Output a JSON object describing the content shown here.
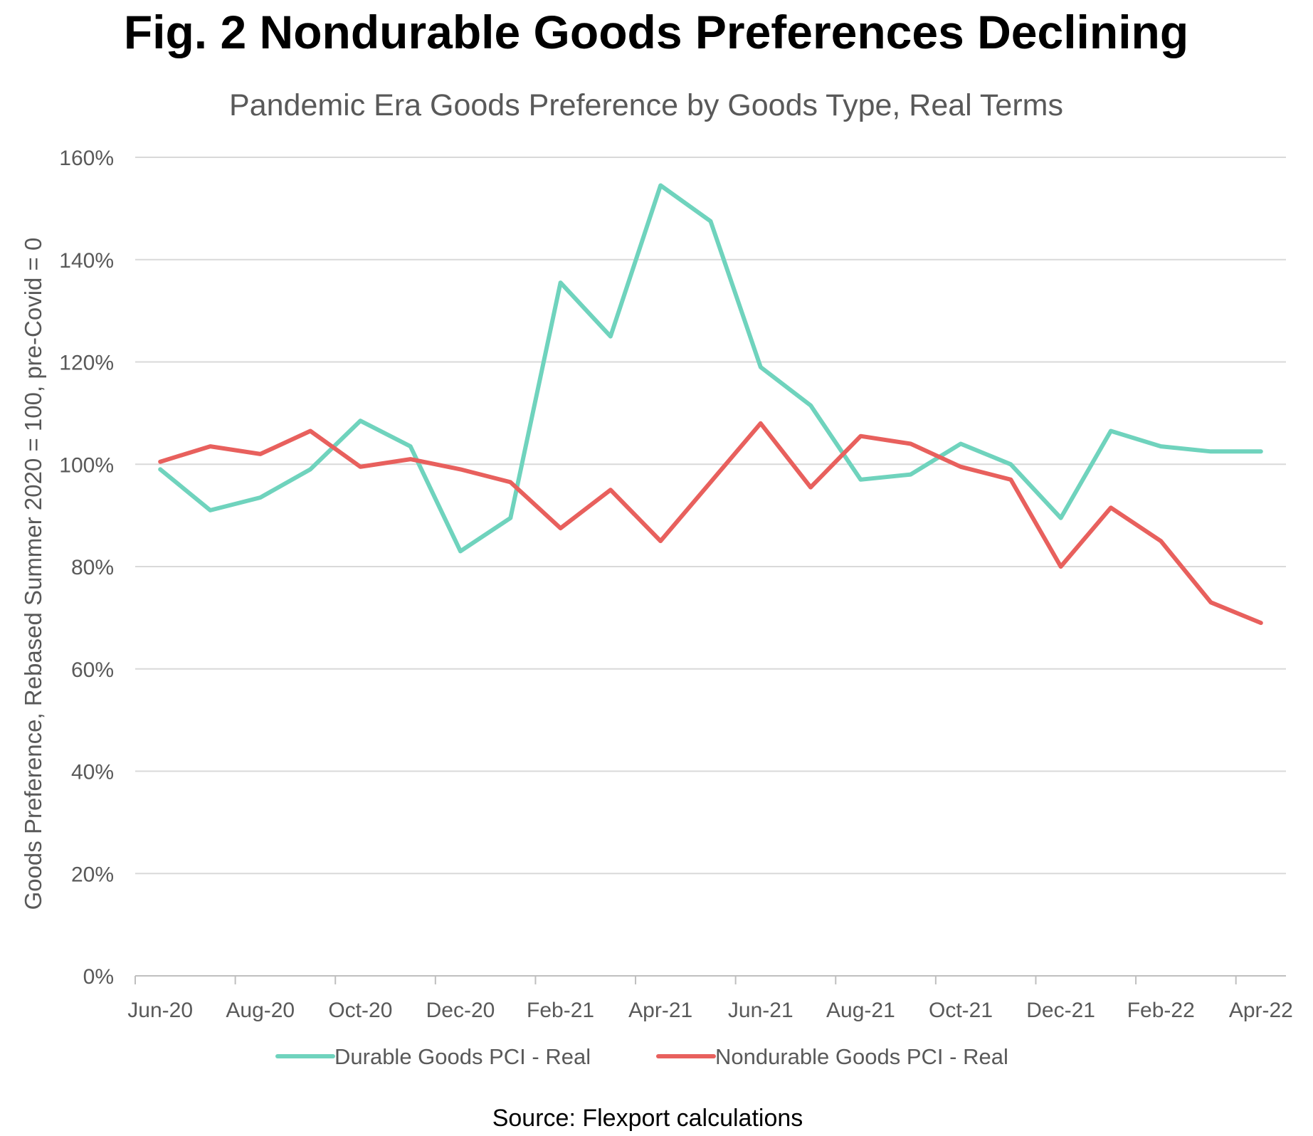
{
  "chart_data": {
    "type": "line",
    "title": "Fig. 2 Nondurable Goods Preferences Declining",
    "subtitle": "Pandemic Era Goods Preference by Goods Type, Real Terms",
    "ylabel": "Goods Preference, Rebased Summer 2020 = 100, pre-Covid = 0",
    "xlabel": "",
    "ylim": [
      0,
      160
    ],
    "yticks": [
      0,
      20,
      40,
      60,
      80,
      100,
      120,
      140,
      160
    ],
    "ytick_labels": [
      "0%",
      "20%",
      "40%",
      "60%",
      "80%",
      "100%",
      "120%",
      "140%",
      "160%"
    ],
    "grid": true,
    "legend_position": "bottom",
    "categories": [
      "Jun-20",
      "Jul-20",
      "Aug-20",
      "Sep-20",
      "Oct-20",
      "Nov-20",
      "Dec-20",
      "Jan-21",
      "Feb-21",
      "Mar-21",
      "Apr-21",
      "May-21",
      "Jun-21",
      "Jul-21",
      "Aug-21",
      "Sep-21",
      "Oct-21",
      "Nov-21",
      "Dec-21",
      "Jan-22",
      "Feb-22",
      "Mar-22",
      "Apr-22"
    ],
    "xtick_labels": [
      "Jun-20",
      "Aug-20",
      "Oct-20",
      "Dec-20",
      "Feb-21",
      "Apr-21",
      "Jun-21",
      "Aug-21",
      "Oct-21",
      "Dec-21",
      "Feb-22",
      "Apr-22"
    ],
    "series": [
      {
        "name": "Durable Goods PCI - Real",
        "color": "#6fd3bd",
        "values": [
          99,
          91,
          93.5,
          99,
          108.5,
          103.5,
          83,
          89.5,
          135.5,
          125,
          154.5,
          147.5,
          119,
          111.5,
          97,
          98,
          104,
          100,
          89.5,
          106.5,
          103.5,
          102.5,
          102.5
        ]
      },
      {
        "name": "Nondurable Goods PCI - Real",
        "color": "#e8605d",
        "values": [
          100.5,
          103.5,
          102,
          106.5,
          99.5,
          101,
          99,
          96.5,
          87.5,
          95,
          85,
          96.5,
          108,
          95.5,
          105.5,
          104,
          99.5,
          97,
          80,
          91.5,
          85,
          73,
          69
        ]
      }
    ],
    "source": "Source: Flexport calculations"
  }
}
